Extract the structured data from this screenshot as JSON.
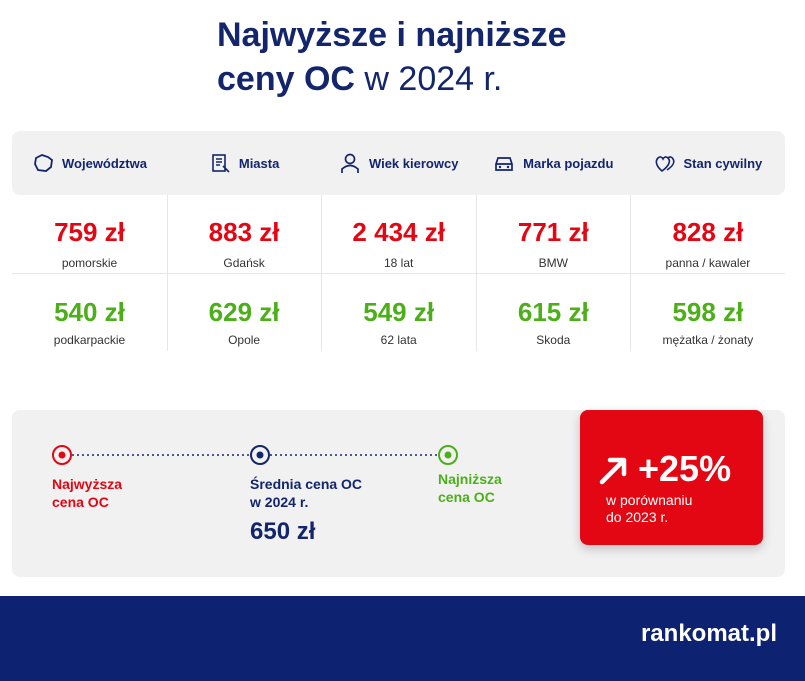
{
  "header": {
    "title_line1": "Najwyższe i najniższe",
    "title_bold": "ceny OC",
    "title_rest": "w 2024 r."
  },
  "columns": [
    {
      "header": "Województwa",
      "high_price": "759 zł",
      "high_label": "pomorskie",
      "low_price": "540 zł",
      "low_label": "podkarpackie"
    },
    {
      "header": "Miasta",
      "high_price": "883 zł",
      "high_label": "Gdańsk",
      "low_price": "629 zł",
      "low_label": "Opole"
    },
    {
      "header": "Wiek kierowcy",
      "high_price": "2 434 zł",
      "high_label": "18 lat",
      "low_price": "549 zł",
      "low_label": "62 lata"
    },
    {
      "header": "Marka pojazdu",
      "high_price": "771 zł",
      "high_label": "BMW",
      "low_price": "615 zł",
      "low_label": "Skoda"
    },
    {
      "header": "Stan cywilny",
      "high_price": "828 zł",
      "high_label": "panna / kawaler",
      "low_price": "598 zł",
      "low_label": "mężatka / żonaty"
    }
  ],
  "legend": {
    "highest_line1": "Najwyższa",
    "highest_line2": "cena OC",
    "average_line1": "Średnia cena OC",
    "average_line2": "w 2024 r.",
    "average_value": "650 zł",
    "lowest_line1": "Najniższa",
    "lowest_line2": "cena OC"
  },
  "change": {
    "value": "+25%",
    "line1": "w porównaniu",
    "line2": "do 2023 r."
  },
  "footer": {
    "brand": "rankomat.pl"
  }
}
